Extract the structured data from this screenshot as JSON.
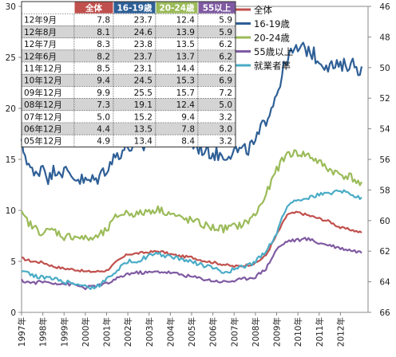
{
  "chart_data": {
    "type": "line",
    "x_labels": [
      "1997年",
      "1998年",
      "1999年",
      "2000年",
      "2001年",
      "2002年",
      "2003年",
      "2004年",
      "2005年",
      "2006年",
      "2007年",
      "2008年",
      "2009年",
      "2010年",
      "2011年",
      "2012年"
    ],
    "x_start": 1997.0,
    "x_end": 2013.3,
    "ylim_left": [
      0,
      30
    ],
    "yticks_left": [
      "0",
      "5",
      "10",
      "15",
      "20",
      "25",
      "30"
    ],
    "ylim_right": [
      66,
      46
    ],
    "yticks_right": [
      "46",
      "48",
      "50",
      "52",
      "54",
      "56",
      "58",
      "60",
      "62",
      "64",
      "66"
    ],
    "grid": false,
    "legend_position": "top-right",
    "colors": {
      "overall": "#c0504d",
      "age16_19": "#2e5f96",
      "age20_24": "#9bbb59",
      "age55plus": "#7f5aa2",
      "employment_rate": "#4aacc6"
    },
    "series": [
      {
        "key": "overall",
        "name": "全体",
        "color": "#c0504d",
        "axis": "left",
        "points": [
          [
            1997.0,
            5.3
          ],
          [
            1997.5,
            5.0
          ],
          [
            1998.0,
            4.9
          ],
          [
            1998.5,
            4.5
          ],
          [
            1999.0,
            4.3
          ],
          [
            1999.5,
            4.2
          ],
          [
            2000.0,
            4.0
          ],
          [
            2000.5,
            4.0
          ],
          [
            2001.0,
            4.1
          ],
          [
            2001.5,
            5.0
          ],
          [
            2002.0,
            5.7
          ],
          [
            2002.5,
            5.8
          ],
          [
            2003.0,
            5.9
          ],
          [
            2003.5,
            6.0
          ],
          [
            2004.0,
            5.7
          ],
          [
            2004.5,
            5.5
          ],
          [
            2005.0,
            5.4
          ],
          [
            2005.5,
            5.1
          ],
          [
            2006.0,
            4.9
          ],
          [
            2006.5,
            4.7
          ],
          [
            2007.0,
            4.5
          ],
          [
            2007.5,
            4.6
          ],
          [
            2008.0,
            4.8
          ],
          [
            2008.5,
            5.6
          ],
          [
            2009.0,
            7.6
          ],
          [
            2009.5,
            9.6
          ],
          [
            2010.0,
            9.8
          ],
          [
            2010.5,
            9.5
          ],
          [
            2011.0,
            9.2
          ],
          [
            2011.5,
            8.9
          ],
          [
            2012.0,
            8.3
          ],
          [
            2012.5,
            8.1
          ],
          [
            2013.0,
            7.8
          ]
        ]
      },
      {
        "key": "age16_19",
        "name": "16-19歳",
        "color": "#2e5f96",
        "axis": "left",
        "points": [
          [
            1997.0,
            16.4
          ],
          [
            1997.3,
            14.8
          ],
          [
            1997.6,
            13.2
          ],
          [
            1998.0,
            14.6
          ],
          [
            1998.3,
            13.0
          ],
          [
            1998.6,
            14.2
          ],
          [
            1999.0,
            13.8
          ],
          [
            1999.5,
            13.3
          ],
          [
            2000.0,
            12.8
          ],
          [
            2000.5,
            13.0
          ],
          [
            2001.0,
            14.2
          ],
          [
            2001.5,
            15.5
          ],
          [
            2002.0,
            16.3
          ],
          [
            2002.5,
            15.9
          ],
          [
            2003.0,
            16.6
          ],
          [
            2003.5,
            17.2
          ],
          [
            2004.0,
            17.0
          ],
          [
            2004.5,
            16.6
          ],
          [
            2005.0,
            16.5
          ],
          [
            2005.5,
            16.0
          ],
          [
            2006.0,
            15.6
          ],
          [
            2006.5,
            15.4
          ],
          [
            2007.0,
            15.9
          ],
          [
            2007.5,
            15.8
          ],
          [
            2008.0,
            16.6
          ],
          [
            2008.5,
            19.0
          ],
          [
            2009.0,
            21.5
          ],
          [
            2009.5,
            25.0
          ],
          [
            2010.0,
            25.8
          ],
          [
            2010.5,
            25.8
          ],
          [
            2011.0,
            24.7
          ],
          [
            2011.5,
            24.2
          ],
          [
            2012.0,
            24.0
          ],
          [
            2012.5,
            24.5
          ],
          [
            2013.0,
            23.7
          ]
        ]
      },
      {
        "key": "age20_24",
        "name": "20-24歳",
        "color": "#9bbb59",
        "axis": "left",
        "points": [
          [
            1997.0,
            9.6
          ],
          [
            1997.5,
            8.4
          ],
          [
            1998.0,
            7.8
          ],
          [
            1998.5,
            8.1
          ],
          [
            1999.0,
            7.4
          ],
          [
            1999.5,
            7.5
          ],
          [
            2000.0,
            7.2
          ],
          [
            2000.5,
            7.3
          ],
          [
            2001.0,
            8.0
          ],
          [
            2001.5,
            9.5
          ],
          [
            2002.0,
            9.8
          ],
          [
            2002.5,
            9.6
          ],
          [
            2003.0,
            10.0
          ],
          [
            2003.5,
            10.1
          ],
          [
            2004.0,
            9.7
          ],
          [
            2004.5,
            9.2
          ],
          [
            2005.0,
            9.0
          ],
          [
            2005.5,
            8.6
          ],
          [
            2006.0,
            8.3
          ],
          [
            2006.5,
            8.2
          ],
          [
            2007.0,
            8.4
          ],
          [
            2007.5,
            8.7
          ],
          [
            2008.0,
            9.6
          ],
          [
            2008.5,
            11.5
          ],
          [
            2009.0,
            14.0
          ],
          [
            2009.5,
            15.6
          ],
          [
            2010.0,
            15.6
          ],
          [
            2010.5,
            15.4
          ],
          [
            2011.0,
            14.7
          ],
          [
            2011.5,
            14.0
          ],
          [
            2012.0,
            13.5
          ],
          [
            2012.5,
            13.3
          ],
          [
            2013.0,
            12.4
          ]
        ]
      },
      {
        "key": "age55plus",
        "name": "55歳以上",
        "color": "#7f5aa2",
        "axis": "left",
        "points": [
          [
            1997.0,
            3.1
          ],
          [
            1997.5,
            2.9
          ],
          [
            1998.0,
            3.0
          ],
          [
            1998.5,
            2.9
          ],
          [
            1999.0,
            2.8
          ],
          [
            1999.5,
            2.7
          ],
          [
            2000.0,
            2.4
          ],
          [
            2000.5,
            2.6
          ],
          [
            2001.0,
            2.8
          ],
          [
            2001.5,
            3.3
          ],
          [
            2002.0,
            3.8
          ],
          [
            2002.5,
            3.9
          ],
          [
            2003.0,
            3.9
          ],
          [
            2003.5,
            4.0
          ],
          [
            2004.0,
            3.9
          ],
          [
            2004.5,
            3.7
          ],
          [
            2005.0,
            3.5
          ],
          [
            2005.5,
            3.3
          ],
          [
            2006.0,
            3.1
          ],
          [
            2006.5,
            3.0
          ],
          [
            2007.0,
            3.1
          ],
          [
            2007.5,
            3.3
          ],
          [
            2008.0,
            3.5
          ],
          [
            2008.5,
            4.3
          ],
          [
            2009.0,
            6.2
          ],
          [
            2009.5,
            7.0
          ],
          [
            2010.0,
            7.1
          ],
          [
            2010.5,
            7.2
          ],
          [
            2011.0,
            6.8
          ],
          [
            2011.5,
            6.6
          ],
          [
            2012.0,
            6.3
          ],
          [
            2012.5,
            6.1
          ],
          [
            2013.0,
            5.9
          ]
        ]
      },
      {
        "key": "employment_rate",
        "name": "就業者率",
        "color": "#4aacc6",
        "axis": "right",
        "points": [
          [
            1997.0,
            63.2
          ],
          [
            1997.5,
            63.6
          ],
          [
            1998.0,
            63.7
          ],
          [
            1998.5,
            63.8
          ],
          [
            1999.0,
            64.0
          ],
          [
            1999.5,
            64.1
          ],
          [
            2000.0,
            64.3
          ],
          [
            2000.5,
            64.4
          ],
          [
            2001.0,
            63.8
          ],
          [
            2001.5,
            63.2
          ],
          [
            2002.0,
            62.7
          ],
          [
            2002.5,
            62.6
          ],
          [
            2003.0,
            62.3
          ],
          [
            2003.5,
            62.2
          ],
          [
            2004.0,
            62.4
          ],
          [
            2004.5,
            62.5
          ],
          [
            2005.0,
            62.7
          ],
          [
            2005.5,
            62.9
          ],
          [
            2006.0,
            63.1
          ],
          [
            2006.5,
            63.4
          ],
          [
            2007.0,
            63.2
          ],
          [
            2007.5,
            63.0
          ],
          [
            2008.0,
            62.7
          ],
          [
            2008.5,
            62.0
          ],
          [
            2009.0,
            60.8
          ],
          [
            2009.5,
            59.0
          ],
          [
            2010.0,
            58.6
          ],
          [
            2010.5,
            58.5
          ],
          [
            2011.0,
            58.3
          ],
          [
            2011.5,
            58.2
          ],
          [
            2012.0,
            58.0
          ],
          [
            2012.5,
            58.3
          ],
          [
            2013.0,
            58.5
          ]
        ]
      }
    ],
    "table": {
      "headers": [
        "",
        "全体",
        "16-19歳",
        "20-24歳",
        "55以上"
      ],
      "header_colors": [
        "#ffffff",
        "#c0504d",
        "#2e5f96",
        "#9bbb59",
        "#7f5aa2"
      ],
      "rows": [
        [
          "12年9月",
          "7.8",
          "23.7",
          "12.4",
          "5.9"
        ],
        [
          "12年8月",
          "8.1",
          "24.6",
          "13.9",
          "5.9"
        ],
        [
          "12年7月",
          "8.3",
          "23.8",
          "13.5",
          "6.2"
        ],
        [
          "12年6月",
          "8.2",
          "23.7",
          "13.7",
          "6.2"
        ],
        [
          "11年12月",
          "8.5",
          "23.1",
          "14.4",
          "6.2"
        ],
        [
          "10年12月",
          "9.4",
          "24.5",
          "15.3",
          "6.9"
        ],
        [
          "09年12月",
          "9.9",
          "25.5",
          "15.7",
          "7.2"
        ],
        [
          "08年12月",
          "7.3",
          "19.1",
          "12.4",
          "5.0"
        ],
        [
          "07年12月",
          "5.0",
          "15.2",
          "9.4",
          "3.2"
        ],
        [
          "06年12月",
          "4.4",
          "13.5",
          "7.8",
          "3.0"
        ],
        [
          "05年12月",
          "4.9",
          "13.4",
          "8.4",
          "3.2"
        ]
      ]
    }
  }
}
